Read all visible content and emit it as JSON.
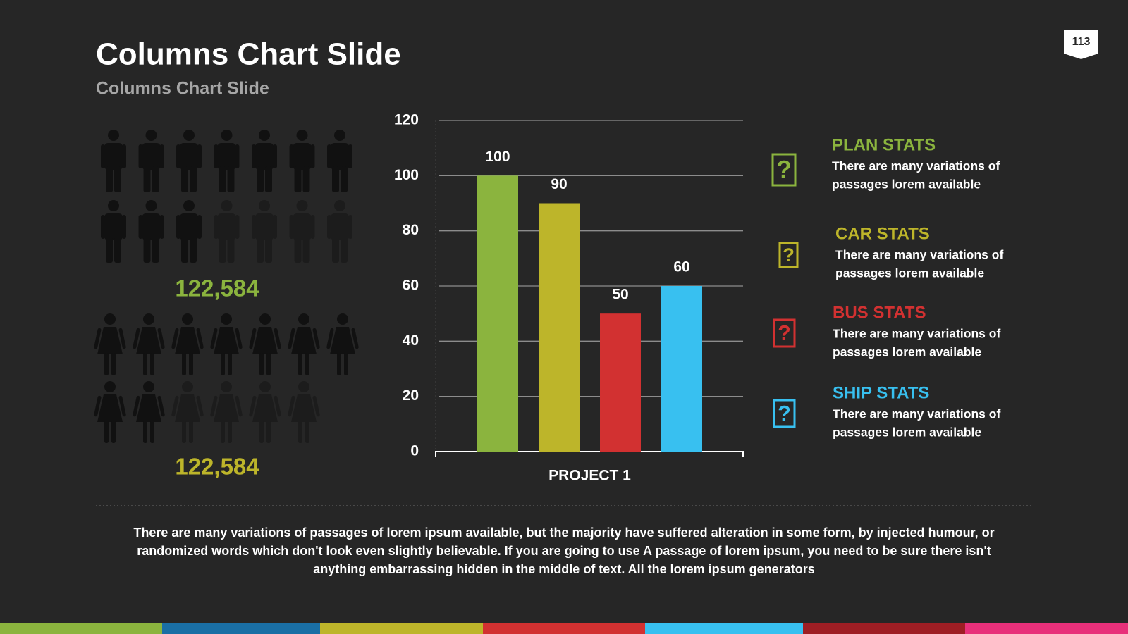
{
  "header": {
    "title": "Columns Chart Slide",
    "subtitle": "Columns Chart Slide",
    "page_number": "113"
  },
  "people": {
    "men_count": "122,584",
    "women_count": "122,584"
  },
  "chart_data": {
    "type": "bar",
    "categories": [
      "PROJECT 1"
    ],
    "series": [
      {
        "name": "PLAN STATS",
        "color": "#8bb43e",
        "values": [
          100
        ]
      },
      {
        "name": "CAR STATS",
        "color": "#bdb52a",
        "values": [
          90
        ]
      },
      {
        "name": "BUS STATS",
        "color": "#d23131",
        "values": [
          50
        ]
      },
      {
        "name": "SHIP STATS",
        "color": "#38c0f0",
        "values": [
          60
        ]
      }
    ],
    "ylim": [
      0,
      120
    ],
    "yticks": [
      0,
      20,
      40,
      60,
      80,
      100,
      120
    ],
    "grid": true
  },
  "stats": [
    {
      "lines": [
        "There are many variations of",
        "passages lorem available"
      ]
    },
    {
      "lines": [
        "There are many variations of",
        "passages lorem available"
      ]
    },
    {
      "lines": [
        "There are many variations of",
        "passages lorem available"
      ]
    },
    {
      "lines": [
        "There are many variations of",
        "passages lorem available"
      ]
    }
  ],
  "footer": {
    "lines": [
      "There are many variations of passages of lorem ipsum available, but the majority have suffered alteration in some form, by injected humour, or",
      "randomized words which don't look even slightly believable. If you are going to use A passage of lorem ipsum, you need to be sure there isn't",
      "anything embarrassing hidden in the middle of text. All the lorem ipsum generators"
    ]
  }
}
